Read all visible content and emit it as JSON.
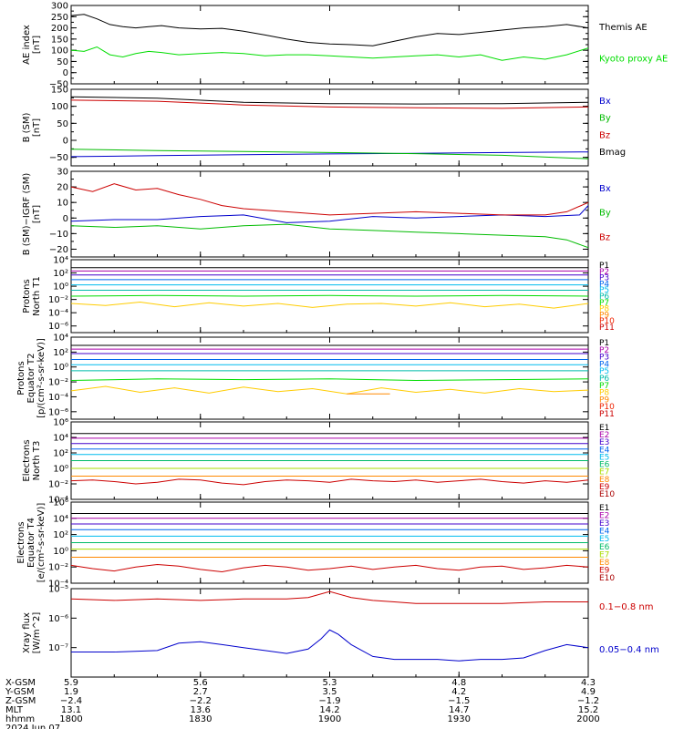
{
  "chart_data": [
    {
      "type": "line",
      "ylabel": [
        "AE index",
        "[nT]"
      ],
      "ylim": [
        -50,
        300
      ],
      "yticks": [
        -50,
        0,
        50,
        100,
        150,
        200,
        250,
        300
      ],
      "yticks_label": [
        "−50",
        "0",
        "50",
        "100",
        "150",
        "200",
        "250",
        "300"
      ],
      "series": [
        {
          "name": "Themis AE",
          "color": "#000000",
          "x": [
            0,
            3,
            6,
            9,
            12,
            15,
            18,
            21,
            25,
            30,
            35,
            40,
            45,
            50,
            55,
            60,
            65,
            70,
            75,
            80,
            85,
            90,
            95,
            100,
            105,
            110,
            115,
            120
          ],
          "y": [
            255,
            260,
            240,
            215,
            205,
            200,
            205,
            210,
            200,
            195,
            198,
            185,
            168,
            150,
            135,
            128,
            125,
            120,
            140,
            160,
            175,
            170,
            180,
            190,
            200,
            205,
            215,
            200
          ]
        },
        {
          "name": "Kyoto proxy AE",
          "color": "#00dd00",
          "x": [
            0,
            3,
            6,
            9,
            12,
            15,
            18,
            21,
            25,
            30,
            35,
            40,
            45,
            50,
            55,
            60,
            65,
            70,
            75,
            80,
            85,
            90,
            95,
            100,
            105,
            110,
            115,
            120
          ],
          "y": [
            100,
            95,
            115,
            80,
            70,
            85,
            95,
            90,
            80,
            85,
            90,
            85,
            75,
            80,
            80,
            75,
            70,
            65,
            70,
            75,
            80,
            70,
            80,
            55,
            70,
            60,
            80,
            110
          ]
        }
      ]
    },
    {
      "type": "line",
      "ylabel": [
        "B (SM)",
        "[nT]"
      ],
      "ylim": [
        -75,
        150
      ],
      "yticks": [
        -50,
        0,
        50,
        100,
        150
      ],
      "yticks_label": [
        "−50",
        "0",
        "50",
        "100",
        "150"
      ],
      "series": [
        {
          "name": "Bx",
          "color": "#0000cc",
          "x": [
            0,
            20,
            40,
            60,
            80,
            100,
            120
          ],
          "y": [
            -48,
            -45,
            -42,
            -40,
            -38,
            -36,
            -34
          ]
        },
        {
          "name": "By",
          "color": "#00bb00",
          "x": [
            0,
            20,
            40,
            60,
            80,
            100,
            120
          ],
          "y": [
            -26,
            -30,
            -33,
            -36,
            -39,
            -44,
            -54
          ]
        },
        {
          "name": "Bz",
          "color": "#cc0000",
          "x": [
            0,
            20,
            40,
            60,
            80,
            100,
            120
          ],
          "y": [
            118,
            115,
            104,
            98,
            96,
            94,
            98
          ]
        },
        {
          "name": "Bmag",
          "color": "#000000",
          "x": [
            0,
            20,
            40,
            60,
            80,
            100,
            120
          ],
          "y": [
            128,
            124,
            112,
            108,
            107,
            108,
            112
          ]
        }
      ]
    },
    {
      "type": "line",
      "ylabel": [
        "B (SM)−IGRF (SM)",
        "[nT]"
      ],
      "ylim": [
        -25,
        30
      ],
      "yticks": [
        -20,
        -10,
        0,
        10,
        20,
        30
      ],
      "yticks_label": [
        "−20",
        "−10",
        "0",
        "10",
        "20",
        "30"
      ],
      "series": [
        {
          "name": "Bx",
          "color": "#0000cc",
          "x": [
            0,
            10,
            20,
            30,
            40,
            50,
            60,
            70,
            80,
            90,
            100,
            110,
            118,
            120
          ],
          "y": [
            -2,
            -1,
            -1,
            1,
            2,
            -3,
            -2,
            1,
            0,
            1,
            2,
            1,
            2,
            8
          ]
        },
        {
          "name": "By",
          "color": "#00bb00",
          "x": [
            0,
            10,
            20,
            30,
            40,
            50,
            60,
            70,
            80,
            90,
            100,
            110,
            115,
            120
          ],
          "y": [
            -5,
            -6,
            -5,
            -7,
            -5,
            -4,
            -7,
            -8,
            -9,
            -10,
            -11,
            -12,
            -14,
            -19
          ]
        },
        {
          "name": "Bz",
          "color": "#cc0000",
          "x": [
            0,
            5,
            10,
            15,
            20,
            25,
            30,
            35,
            40,
            50,
            60,
            70,
            80,
            90,
            100,
            110,
            115,
            120
          ],
          "y": [
            20,
            17,
            22,
            18,
            19,
            15,
            12,
            8,
            6,
            4,
            2,
            3,
            4,
            3,
            2,
            2,
            4,
            10
          ]
        }
      ]
    },
    {
      "type": "line",
      "ylabel": [
        "Protons",
        "North T1"
      ],
      "log": true,
      "ylim": [
        -7,
        4
      ],
      "yticks": [
        -6,
        -4,
        -2,
        0,
        2,
        4
      ],
      "yticks_label": [
        "10⁻⁶",
        "10⁻⁴",
        "10⁻²",
        "10⁰",
        "10²",
        "10⁴"
      ],
      "series": [
        {
          "name": "P1",
          "color": "#000000",
          "const": 2.8
        },
        {
          "name": "P2",
          "color": "#aa00aa",
          "const": 2.3
        },
        {
          "name": "P3",
          "color": "#4400cc",
          "const": 1.7
        },
        {
          "name": "P4",
          "color": "#0066ee",
          "const": 1.0
        },
        {
          "name": "P5",
          "color": "#00bbee",
          "const": 0.2
        },
        {
          "name": "P6",
          "color": "#00bbaa",
          "const": -0.6
        },
        {
          "name": "P7",
          "color": "#00dd00",
          "x": [
            0,
            20,
            40,
            60,
            80,
            100,
            120
          ],
          "y": [
            -1.5,
            -1.4,
            -1.5,
            -1.4,
            -1.5,
            -1.4,
            -1.5
          ]
        },
        {
          "name": "P8",
          "color": "#ffcc00",
          "x": [
            0,
            8,
            16,
            24,
            32,
            40,
            48,
            56,
            64,
            72,
            80,
            88,
            96,
            104,
            112,
            120
          ],
          "y": [
            -2.6,
            -2.9,
            -2.4,
            -3.1,
            -2.5,
            -3.0,
            -2.6,
            -3.2,
            -2.7,
            -2.6,
            -3.0,
            -2.5,
            -3.1,
            -2.7,
            -3.3,
            -2.6
          ]
        },
        {
          "name": "P9",
          "color": "#ff8800"
        },
        {
          "name": "P10",
          "color": "#ee2200"
        },
        {
          "name": "P11",
          "color": "#cc0000"
        }
      ]
    },
    {
      "type": "line",
      "ylabel": [
        "Protons",
        "Equator T2",
        "[p/(cm²-s-sr-keV)]"
      ],
      "log": true,
      "ylim": [
        -7,
        4
      ],
      "yticks": [
        -6,
        -4,
        -2,
        0,
        2,
        4
      ],
      "yticks_label": [
        "10⁻⁶",
        "10⁻⁴",
        "10⁻²",
        "10⁰",
        "10²",
        "10⁴"
      ],
      "series": [
        {
          "name": "P1",
          "color": "#000000",
          "const": 2.9
        },
        {
          "name": "P2",
          "color": "#aa00aa",
          "const": 2.4
        },
        {
          "name": "P3",
          "color": "#4400cc",
          "const": 1.8
        },
        {
          "name": "P4",
          "color": "#0066ee",
          "const": 1.0
        },
        {
          "name": "P5",
          "color": "#00bbee",
          "const": 0.3
        },
        {
          "name": "P6",
          "color": "#00bbaa",
          "const": -0.5
        },
        {
          "name": "P7",
          "color": "#00dd00",
          "x": [
            0,
            20,
            40,
            60,
            80,
            100,
            120
          ],
          "y": [
            -1.8,
            -1.6,
            -1.7,
            -1.6,
            -1.8,
            -1.7,
            -1.6
          ]
        },
        {
          "name": "P8",
          "color": "#ffcc00",
          "x": [
            0,
            8,
            16,
            24,
            32,
            40,
            48,
            56,
            64,
            72,
            80,
            88,
            96,
            104,
            112,
            120
          ],
          "y": [
            -3.2,
            -2.6,
            -3.4,
            -2.8,
            -3.5,
            -2.7,
            -3.3,
            -2.9,
            -3.6,
            -2.8,
            -3.4,
            -3.0,
            -3.5,
            -2.9,
            -3.3,
            -3.1
          ]
        },
        {
          "name": "P9",
          "color": "#ff8800",
          "x": [
            64,
            74
          ],
          "y": [
            -3.6,
            -3.6
          ]
        },
        {
          "name": "P10",
          "color": "#ee2200"
        },
        {
          "name": "P11",
          "color": "#cc0000"
        }
      ]
    },
    {
      "type": "line",
      "ylabel": [
        "Electrons",
        "North T3"
      ],
      "log": true,
      "ylim": [
        -4,
        6
      ],
      "yticks": [
        -4,
        -2,
        0,
        2,
        4,
        6
      ],
      "yticks_label": [
        "10⁻⁴",
        "10⁻²",
        "10⁰",
        "10²",
        "10⁴",
        "10⁶"
      ],
      "series": [
        {
          "name": "E1",
          "color": "#000000",
          "const": 4.5
        },
        {
          "name": "E2",
          "color": "#aa00aa",
          "const": 3.9
        },
        {
          "name": "E3",
          "color": "#4400cc",
          "const": 3.2
        },
        {
          "name": "E4",
          "color": "#0066ee",
          "const": 2.5
        },
        {
          "name": "E5",
          "color": "#00bbee",
          "const": 1.8
        },
        {
          "name": "E6",
          "color": "#00bb66",
          "const": 1.0
        },
        {
          "name": "E7",
          "color": "#aadd00",
          "const": 0.0
        },
        {
          "name": "E8",
          "color": "#ff8800",
          "const": -1.0
        },
        {
          "name": "E9",
          "color": "#cc0000",
          "x": [
            0,
            5,
            10,
            15,
            20,
            25,
            30,
            35,
            40,
            45,
            50,
            55,
            60,
            65,
            70,
            75,
            80,
            85,
            90,
            95,
            100,
            105,
            110,
            115,
            120
          ],
          "y": [
            -1.6,
            -1.5,
            -1.7,
            -2.0,
            -1.8,
            -1.4,
            -1.5,
            -1.9,
            -2.1,
            -1.7,
            -1.5,
            -1.6,
            -1.8,
            -1.4,
            -1.6,
            -1.7,
            -1.5,
            -1.8,
            -1.6,
            -1.4,
            -1.7,
            -1.9,
            -1.6,
            -1.8,
            -1.5
          ]
        },
        {
          "name": "E10",
          "color": "#aa0000"
        }
      ]
    },
    {
      "type": "line",
      "ylabel": [
        "Electrons",
        "Equator T4",
        "[e/(cm²-s-sr-keV)]"
      ],
      "log": true,
      "ylim": [
        -4,
        6
      ],
      "yticks": [
        -4,
        -2,
        0,
        2,
        4,
        6
      ],
      "yticks_label": [
        "10⁻⁴",
        "10⁻²",
        "10⁰",
        "10²",
        "10⁴",
        "10⁶"
      ],
      "series": [
        {
          "name": "E1",
          "color": "#000000",
          "const": 4.6
        },
        {
          "name": "E2",
          "color": "#aa00aa",
          "const": 4.0
        },
        {
          "name": "E3",
          "color": "#4400cc",
          "const": 3.3
        },
        {
          "name": "E4",
          "color": "#0066ee",
          "const": 2.6
        },
        {
          "name": "E5",
          "color": "#00bbee",
          "const": 1.8
        },
        {
          "name": "E6",
          "color": "#00bb66",
          "const": 1.0
        },
        {
          "name": "E7",
          "color": "#aadd00",
          "const": 0.2
        },
        {
          "name": "E8",
          "color": "#ff8800",
          "const": -0.8
        },
        {
          "name": "E9",
          "color": "#cc0000",
          "x": [
            0,
            5,
            10,
            15,
            20,
            25,
            30,
            35,
            40,
            45,
            50,
            55,
            60,
            65,
            70,
            75,
            80,
            85,
            90,
            95,
            100,
            105,
            110,
            115,
            120
          ],
          "y": [
            -1.8,
            -2.2,
            -2.5,
            -2.0,
            -1.7,
            -1.9,
            -2.3,
            -2.6,
            -2.1,
            -1.8,
            -2.0,
            -2.4,
            -2.2,
            -1.9,
            -2.3,
            -2.0,
            -1.8,
            -2.2,
            -2.4,
            -2.0,
            -1.9,
            -2.3,
            -2.1,
            -1.8,
            -2.0
          ]
        },
        {
          "name": "E10",
          "color": "#aa0000"
        }
      ]
    },
    {
      "type": "line",
      "ylabel": [
        "Xray flux",
        "[W/m^2]"
      ],
      "log": true,
      "ylim": [
        -8,
        -5
      ],
      "yticks": [
        -7,
        -6,
        -5
      ],
      "yticks_label": [
        "10⁻⁷",
        "10⁻⁶",
        "10⁻⁵"
      ],
      "series": [
        {
          "name": "0.1−0.8 nm",
          "color": "#cc0000",
          "x": [
            0,
            10,
            20,
            30,
            40,
            50,
            55,
            60,
            65,
            70,
            75,
            80,
            90,
            100,
            110,
            120
          ],
          "y": [
            -5.35,
            -5.4,
            -5.35,
            -5.4,
            -5.35,
            -5.35,
            -5.3,
            -5.1,
            -5.3,
            -5.4,
            -5.45,
            -5.5,
            -5.5,
            -5.5,
            -5.45,
            -5.45
          ]
        },
        {
          "name": "0.05−0.4 nm",
          "color": "#0000cc",
          "x": [
            0,
            10,
            20,
            25,
            30,
            35,
            40,
            45,
            50,
            55,
            58,
            60,
            62,
            65,
            70,
            75,
            80,
            85,
            90,
            95,
            100,
            105,
            110,
            115,
            120
          ],
          "y": [
            -7.15,
            -7.15,
            -7.1,
            -6.85,
            -6.8,
            -6.9,
            -7.0,
            -7.1,
            -7.2,
            -7.05,
            -6.7,
            -6.4,
            -6.55,
            -6.9,
            -7.3,
            -7.4,
            -7.4,
            -7.4,
            -7.45,
            -7.4,
            -7.4,
            -7.35,
            -7.1,
            -6.9,
            -7.0
          ]
        }
      ]
    }
  ],
  "xaxis": {
    "ticks": [
      0,
      30,
      60,
      90,
      120
    ],
    "rows": [
      {
        "label": "X-GSM",
        "values": [
          "5.9",
          "5.6",
          "5.3",
          "4.8",
          "4.3"
        ]
      },
      {
        "label": "Y-GSM",
        "values": [
          "1.9",
          "2.7",
          "3.5",
          "4.2",
          "4.9"
        ]
      },
      {
        "label": "Z-GSM",
        "values": [
          "−2.4",
          "−2.2",
          "−1.9",
          "−1.5",
          "−1.2"
        ]
      },
      {
        "label": "MLT",
        "values": [
          "13.1",
          "13.6",
          "14.2",
          "14.7",
          "15.2"
        ]
      },
      {
        "label": "hhmm",
        "values": [
          "1800",
          "1830",
          "1900",
          "1930",
          "2000"
        ]
      }
    ],
    "date": "2024 Jun 07"
  }
}
